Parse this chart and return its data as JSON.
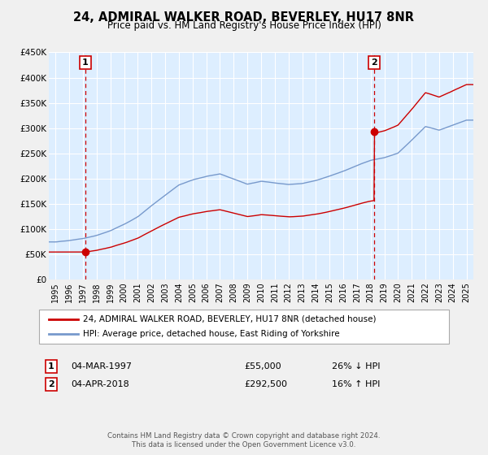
{
  "title": "24, ADMIRAL WALKER ROAD, BEVERLEY, HU17 8NR",
  "subtitle": "Price paid vs. HM Land Registry's House Price Index (HPI)",
  "legend_line1": "24, ADMIRAL WALKER ROAD, BEVERLEY, HU17 8NR (detached house)",
  "legend_line2": "HPI: Average price, detached house, East Riding of Yorkshire",
  "annotation1_label": "1",
  "annotation1_date": "04-MAR-1997",
  "annotation1_price": "£55,000",
  "annotation1_hpi": "26% ↓ HPI",
  "annotation1_year": 1997.17,
  "annotation1_value": 55000,
  "annotation2_label": "2",
  "annotation2_date": "04-APR-2018",
  "annotation2_price": "£292,500",
  "annotation2_hpi": "16% ↑ HPI",
  "annotation2_year": 2018.25,
  "annotation2_value": 292500,
  "ylim": [
    0,
    450000
  ],
  "xlim_start": 1994.5,
  "xlim_end": 2025.5,
  "yticks": [
    0,
    50000,
    100000,
    150000,
    200000,
    250000,
    300000,
    350000,
    400000,
    450000
  ],
  "ytick_labels": [
    "£0",
    "£50K",
    "£100K",
    "£150K",
    "£200K",
    "£250K",
    "£300K",
    "£350K",
    "£400K",
    "£450K"
  ],
  "xticks": [
    1995,
    1996,
    1997,
    1998,
    1999,
    2000,
    2001,
    2002,
    2003,
    2004,
    2005,
    2006,
    2007,
    2008,
    2009,
    2010,
    2011,
    2012,
    2013,
    2014,
    2015,
    2016,
    2017,
    2018,
    2019,
    2020,
    2021,
    2022,
    2023,
    2024,
    2025
  ],
  "line_color_red": "#cc0000",
  "line_color_blue": "#7799cc",
  "bg_color": "#ddeeff",
  "grid_color": "#ffffff",
  "vline_color": "#cc0000",
  "box_facecolor": "#ffffff",
  "box_edgecolor": "#cc0000",
  "fig_facecolor": "#f0f0f0",
  "footnote": "Contains HM Land Registry data © Crown copyright and database right 2024.\nThis data is licensed under the Open Government Licence v3.0."
}
